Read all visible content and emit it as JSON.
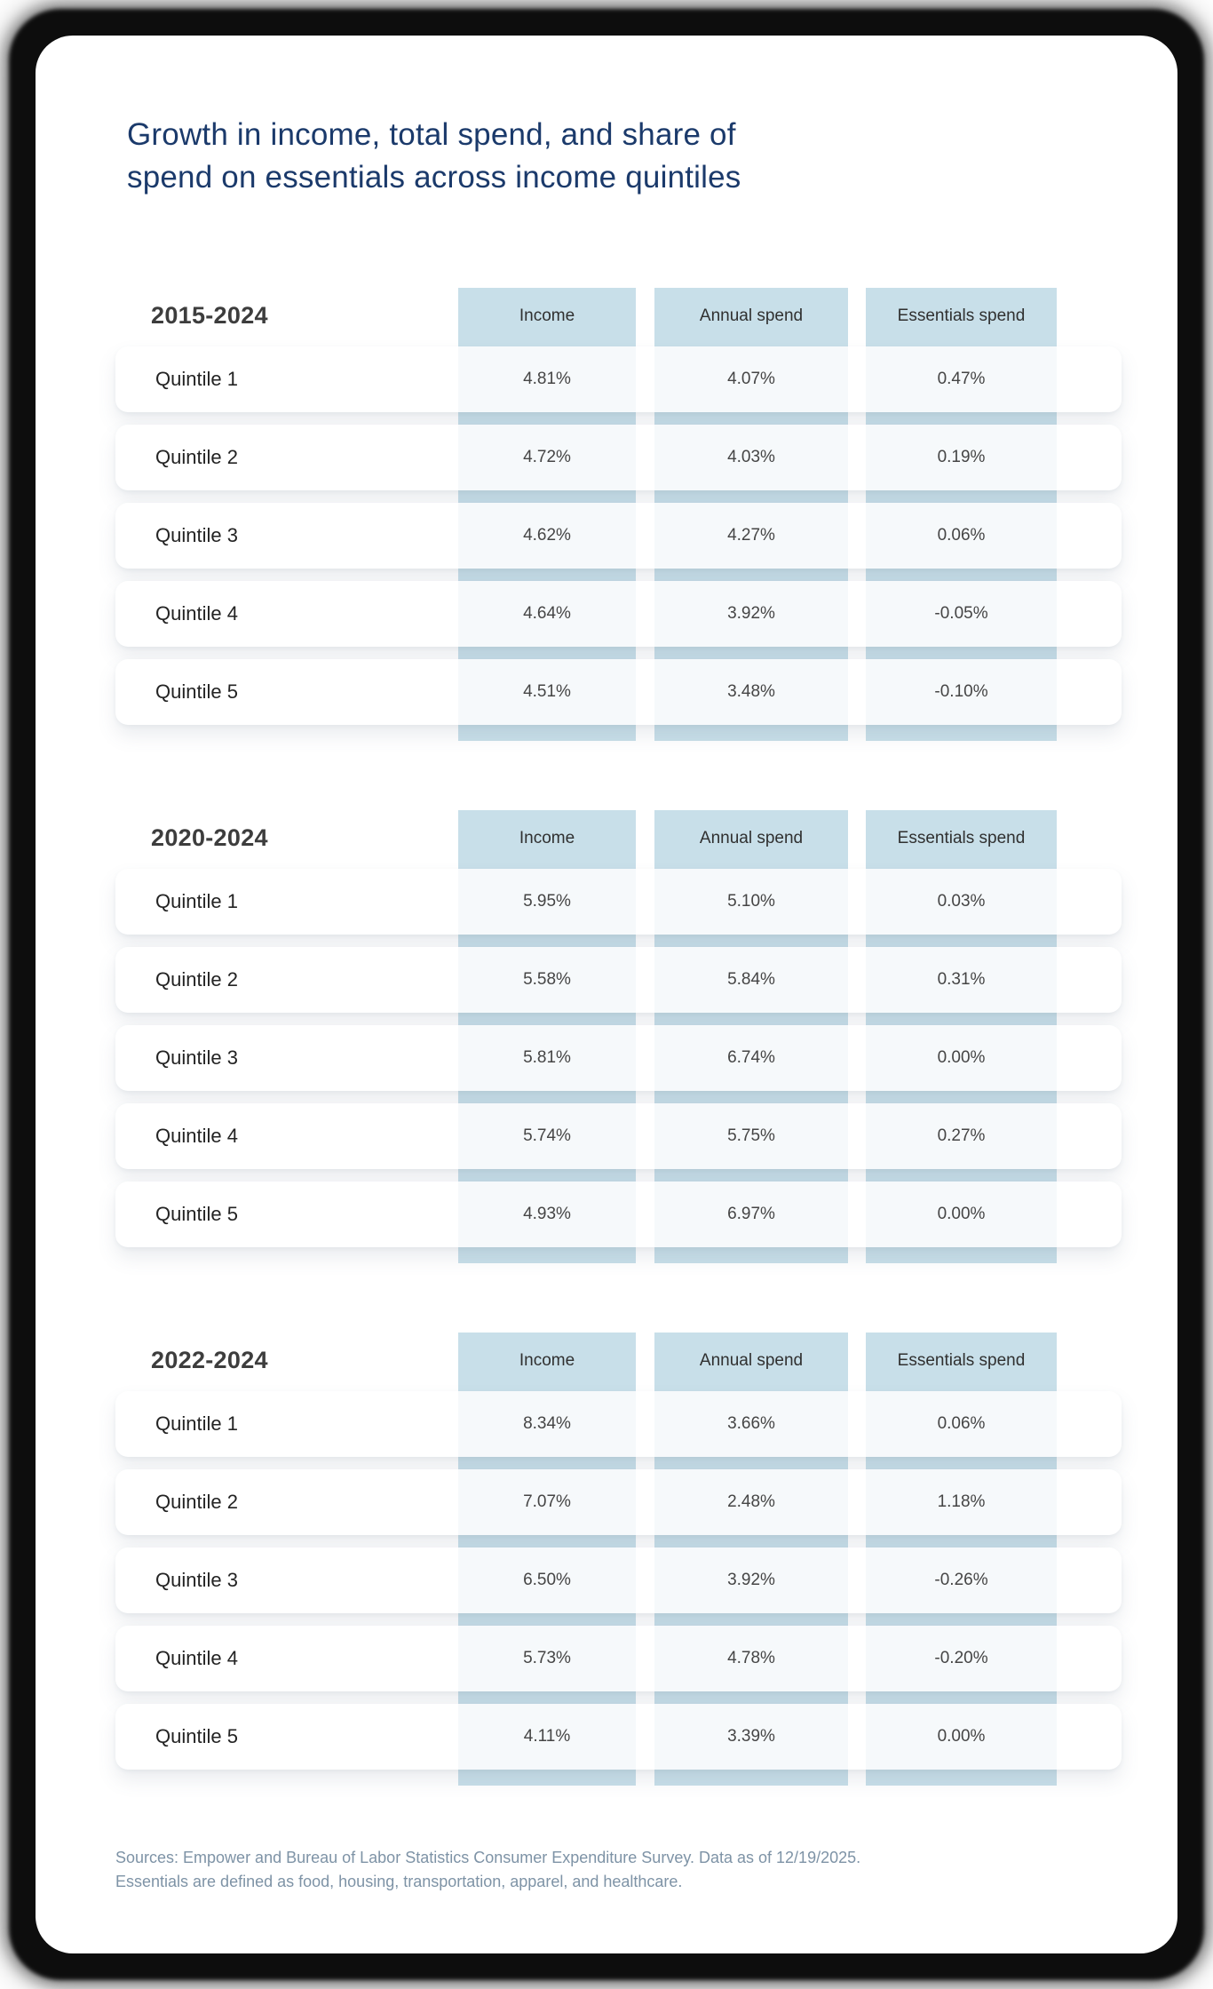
{
  "title": {
    "line1": "Growth in income, total spend, and share of",
    "line2": "spend on essentials across income quintiles"
  },
  "columns": {
    "income": "Income",
    "annual": "Annual spend",
    "essentials": "Essentials spend"
  },
  "tables": [
    {
      "period": "2015-2024",
      "rows": [
        {
          "label": "Quintile 1",
          "income": "4.81%",
          "annual": "4.07%",
          "essentials": "0.47%"
        },
        {
          "label": "Quintile 2",
          "income": "4.72%",
          "annual": "4.03%",
          "essentials": "0.19%"
        },
        {
          "label": "Quintile 3",
          "income": "4.62%",
          "annual": "4.27%",
          "essentials": "0.06%"
        },
        {
          "label": "Quintile 4",
          "income": "4.64%",
          "annual": "3.92%",
          "essentials": "-0.05%"
        },
        {
          "label": "Quintile 5",
          "income": "4.51%",
          "annual": "3.48%",
          "essentials": "-0.10%"
        }
      ]
    },
    {
      "period": "2020-2024",
      "rows": [
        {
          "label": "Quintile 1",
          "income": "5.95%",
          "annual": "5.10%",
          "essentials": "0.03%"
        },
        {
          "label": "Quintile 2",
          "income": "5.58%",
          "annual": "5.84%",
          "essentials": "0.31%"
        },
        {
          "label": "Quintile 3",
          "income": "5.81%",
          "annual": "6.74%",
          "essentials": "0.00%"
        },
        {
          "label": "Quintile 4",
          "income": "5.74%",
          "annual": "5.75%",
          "essentials": "0.27%"
        },
        {
          "label": "Quintile 5",
          "income": "4.93%",
          "annual": "6.97%",
          "essentials": "0.00%"
        }
      ]
    },
    {
      "period": "2022-2024",
      "rows": [
        {
          "label": "Quintile 1",
          "income": "8.34%",
          "annual": "3.66%",
          "essentials": "0.06%"
        },
        {
          "label": "Quintile 2",
          "income": "7.07%",
          "annual": "2.48%",
          "essentials": "1.18%"
        },
        {
          "label": "Quintile 3",
          "income": "6.50%",
          "annual": "3.92%",
          "essentials": "-0.26%"
        },
        {
          "label": "Quintile 4",
          "income": "5.73%",
          "annual": "4.78%",
          "essentials": "-0.20%"
        },
        {
          "label": "Quintile 5",
          "income": "4.11%",
          "annual": "3.39%",
          "essentials": "0.00%"
        }
      ]
    }
  ],
  "footer": {
    "line1": "Sources: Empower and Bureau of Labor Statistics Consumer Expenditure Survey. Data as of 12/19/2025.",
    "line2": "Essentials are defined as food, housing, transportation, apparel, and healthcare."
  },
  "colors": {
    "title_navy": "#1b3a6b",
    "band_blue": "#c8dfe9",
    "cell_tint": "#f6f9fb",
    "footnote_slate": "#7e93a6",
    "frame_black": "#0d0d0d"
  },
  "chart_data": [
    {
      "type": "table",
      "title": "2015-2024",
      "unit": "%",
      "categories": [
        "Quintile 1",
        "Quintile 2",
        "Quintile 3",
        "Quintile 4",
        "Quintile 5"
      ],
      "series": [
        {
          "name": "Income",
          "values": [
            4.81,
            4.72,
            4.62,
            4.64,
            4.51
          ]
        },
        {
          "name": "Annual spend",
          "values": [
            4.07,
            4.03,
            4.27,
            3.92,
            3.48
          ]
        },
        {
          "name": "Essentials spend",
          "values": [
            0.47,
            0.19,
            0.06,
            -0.05,
            -0.1
          ]
        }
      ]
    },
    {
      "type": "table",
      "title": "2020-2024",
      "unit": "%",
      "categories": [
        "Quintile 1",
        "Quintile 2",
        "Quintile 3",
        "Quintile 4",
        "Quintile 5"
      ],
      "series": [
        {
          "name": "Income",
          "values": [
            5.95,
            5.58,
            5.81,
            5.74,
            4.93
          ]
        },
        {
          "name": "Annual spend",
          "values": [
            5.1,
            5.84,
            6.74,
            5.75,
            6.97
          ]
        },
        {
          "name": "Essentials spend",
          "values": [
            0.03,
            0.31,
            0.0,
            0.27,
            0.0
          ]
        }
      ]
    },
    {
      "type": "table",
      "title": "2022-2024",
      "unit": "%",
      "categories": [
        "Quintile 1",
        "Quintile 2",
        "Quintile 3",
        "Quintile 4",
        "Quintile 5"
      ],
      "series": [
        {
          "name": "Income",
          "values": [
            8.34,
            7.07,
            6.5,
            5.73,
            4.11
          ]
        },
        {
          "name": "Annual spend",
          "values": [
            3.66,
            2.48,
            3.92,
            4.78,
            3.39
          ]
        },
        {
          "name": "Essentials spend",
          "values": [
            0.06,
            1.18,
            -0.26,
            -0.2,
            0.0
          ]
        }
      ]
    }
  ]
}
